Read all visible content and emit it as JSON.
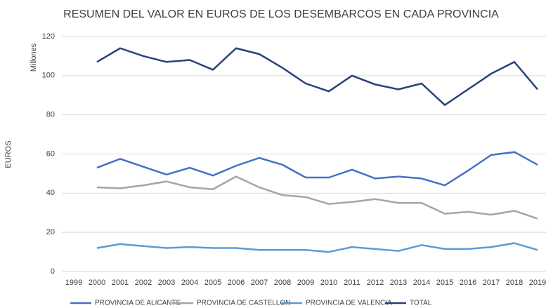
{
  "chart_data": {
    "type": "line",
    "title": "RESUMEN DEL  VALOR EN EUROS DE LOS DESEMBARCOS EN CADA PROVINCIA",
    "y_unit": "Millones",
    "y_label": "EUROS",
    "categories": [
      "1999",
      "2000",
      "2001",
      "2002",
      "2003",
      "2004",
      "2005",
      "2006",
      "2007",
      "2008",
      "2009",
      "2010",
      "2011",
      "2012",
      "2013",
      "2014",
      "2015",
      "2016",
      "2017",
      "2018",
      "2019"
    ],
    "series": [
      {
        "name": "PROVINCIA DE ALICANTE",
        "color": "#4472c4",
        "values": [
          null,
          53,
          57.5,
          53.5,
          49.5,
          53,
          49,
          54,
          58,
          54.5,
          48,
          48,
          52,
          47.5,
          48.5,
          47.5,
          44,
          51.5,
          59.5,
          61,
          54.5
        ]
      },
      {
        "name": "PROVINCIA DE CASTELLON",
        "color": "#a5a5a5",
        "values": [
          null,
          43,
          42.5,
          44,
          46,
          43,
          42,
          48.5,
          43,
          39,
          38,
          34.5,
          35.5,
          37,
          35,
          35,
          29.5,
          30.5,
          29,
          31,
          27
        ]
      },
      {
        "name": "PROVINCIA DE VALENCIA",
        "color": "#5b9bd5",
        "values": [
          null,
          12,
          14,
          13,
          12,
          12.5,
          12,
          12,
          11,
          11,
          11,
          10,
          12.5,
          11.5,
          10.5,
          13.5,
          11.5,
          11.5,
          12.5,
          14.5,
          11
        ]
      },
      {
        "name": "TOTAL",
        "color": "#264478",
        "values": [
          null,
          107,
          114,
          110,
          107,
          108,
          103,
          114,
          111,
          104,
          96,
          92,
          100,
          95.5,
          93,
          96,
          85,
          93,
          101,
          107,
          93
        ]
      }
    ],
    "ylim": [
      0,
      120
    ],
    "yticks": [
      0,
      20,
      40,
      60,
      80,
      100,
      120
    ],
    "grid": true,
    "legend": "bottom"
  }
}
